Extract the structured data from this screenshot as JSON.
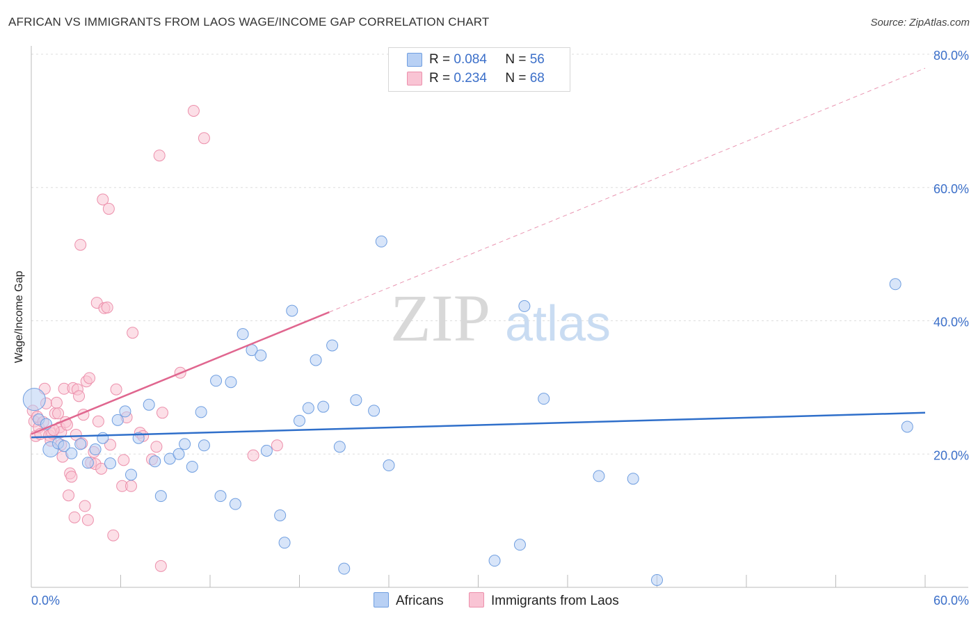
{
  "title": "AFRICAN VS IMMIGRANTS FROM LAOS WAGE/INCOME GAP CORRELATION CHART",
  "source": "Source: ZipAtlas.com",
  "watermark": {
    "zip": "ZIP",
    "atlas": "atlas"
  },
  "legend": {
    "africans": {
      "r_label": "R =",
      "r_value": "0.084",
      "n_label": "N =",
      "n_value": "56"
    },
    "laos": {
      "r_label": "R =",
      "r_value": "0.234",
      "n_label": "N =",
      "n_value": "68"
    }
  },
  "colors": {
    "africans_fill": "#b8d0f4",
    "africans_stroke": "#6f9ee0",
    "africans_line": "#2f6fca",
    "laos_fill": "#f9c4d4",
    "laos_stroke": "#ec8fab",
    "laos_line": "#e0668f",
    "grid": "#dddddd",
    "tick_label": "#3b6fc9"
  },
  "chart_data": {
    "type": "scatter",
    "title": "AFRICAN VS IMMIGRANTS FROM LAOS WAGE/INCOME GAP CORRELATION CHART",
    "xlabel": "",
    "ylabel": "Wage/Income Gap",
    "xlim": [
      0,
      60
    ],
    "ylim": [
      0,
      80
    ],
    "x_tick_labels": [
      "0.0%",
      "60.0%"
    ],
    "y_ticks": [
      20,
      40,
      60,
      80
    ],
    "y_tick_labels": [
      "20.0%",
      "40.0%",
      "60.0%",
      "80.0%"
    ],
    "grid": true,
    "series": [
      {
        "name": "Africans",
        "r": 0.084,
        "n": 56,
        "trend": {
          "x": [
            0,
            60
          ],
          "y": [
            22.5,
            26.2
          ],
          "style": "solid"
        },
        "points": [
          [
            0.2,
            28.2
          ],
          [
            0.5,
            25.2
          ],
          [
            1.0,
            24.5
          ],
          [
            1.3,
            20.7
          ],
          [
            1.8,
            21.6
          ],
          [
            2.2,
            21.2
          ],
          [
            2.7,
            20.1
          ],
          [
            3.3,
            21.5
          ],
          [
            3.8,
            18.7
          ],
          [
            4.3,
            20.7
          ],
          [
            4.8,
            22.4
          ],
          [
            5.3,
            18.6
          ],
          [
            5.8,
            25.1
          ],
          [
            6.3,
            26.4
          ],
          [
            6.7,
            16.9
          ],
          [
            7.2,
            22.4
          ],
          [
            7.9,
            27.4
          ],
          [
            8.3,
            18.9
          ],
          [
            8.7,
            13.7
          ],
          [
            9.3,
            19.3
          ],
          [
            9.9,
            20.0
          ],
          [
            10.3,
            21.5
          ],
          [
            10.8,
            18.1
          ],
          [
            11.4,
            26.3
          ],
          [
            11.6,
            21.3
          ],
          [
            12.4,
            31.0
          ],
          [
            12.7,
            13.7
          ],
          [
            13.4,
            30.8
          ],
          [
            13.7,
            12.5
          ],
          [
            14.2,
            38.0
          ],
          [
            14.8,
            35.6
          ],
          [
            15.4,
            34.8
          ],
          [
            15.8,
            20.5
          ],
          [
            16.7,
            10.8
          ],
          [
            17.0,
            6.7
          ],
          [
            17.5,
            41.5
          ],
          [
            18.0,
            25.0
          ],
          [
            18.6,
            26.9
          ],
          [
            19.1,
            34.1
          ],
          [
            19.6,
            27.1
          ],
          [
            20.2,
            36.3
          ],
          [
            20.7,
            21.1
          ],
          [
            21.0,
            2.8
          ],
          [
            21.8,
            28.1
          ],
          [
            23.0,
            26.5
          ],
          [
            23.5,
            51.9
          ],
          [
            24.0,
            18.3
          ],
          [
            31.1,
            4.0
          ],
          [
            32.8,
            6.4
          ],
          [
            33.1,
            42.2
          ],
          [
            34.4,
            28.3
          ],
          [
            38.1,
            16.7
          ],
          [
            40.4,
            16.3
          ],
          [
            42.0,
            1.1
          ],
          [
            58.0,
            45.5
          ],
          [
            58.8,
            24.1
          ]
        ]
      },
      {
        "name": "Immigrants from Laos",
        "r": 0.234,
        "n": 68,
        "trend": {
          "x": [
            0,
            20
          ],
          "y": [
            23.0,
            41.3
          ],
          "style": "solid",
          "extended": {
            "x": [
              20,
              60
            ],
            "y": [
              41.3,
              77.9
            ],
            "style": "dashed"
          }
        },
        "points": [
          [
            0.1,
            26.5
          ],
          [
            0.2,
            24.9
          ],
          [
            0.3,
            22.7
          ],
          [
            0.4,
            25.6
          ],
          [
            0.5,
            24.0
          ],
          [
            0.6,
            23.0
          ],
          [
            0.8,
            24.8
          ],
          [
            0.9,
            29.8
          ],
          [
            1.0,
            27.6
          ],
          [
            1.2,
            22.8
          ],
          [
            1.3,
            22.0
          ],
          [
            1.4,
            23.1
          ],
          [
            1.6,
            26.1
          ],
          [
            1.7,
            27.7
          ],
          [
            1.8,
            26.1
          ],
          [
            1.9,
            24.0
          ],
          [
            2.0,
            23.3
          ],
          [
            2.1,
            19.6
          ],
          [
            2.2,
            29.8
          ],
          [
            2.3,
            24.8
          ],
          [
            2.4,
            24.4
          ],
          [
            2.5,
            13.8
          ],
          [
            2.6,
            17.1
          ],
          [
            2.7,
            16.6
          ],
          [
            2.8,
            29.9
          ],
          [
            2.9,
            10.5
          ],
          [
            3.0,
            22.9
          ],
          [
            3.1,
            29.7
          ],
          [
            3.2,
            28.7
          ],
          [
            3.3,
            51.4
          ],
          [
            3.4,
            21.6
          ],
          [
            3.5,
            25.9
          ],
          [
            3.6,
            12.2
          ],
          [
            3.7,
            30.9
          ],
          [
            3.8,
            10.1
          ],
          [
            3.9,
            31.4
          ],
          [
            4.0,
            18.7
          ],
          [
            4.2,
            20.3
          ],
          [
            4.3,
            18.5
          ],
          [
            4.4,
            42.7
          ],
          [
            4.5,
            24.9
          ],
          [
            4.7,
            17.8
          ],
          [
            4.8,
            58.2
          ],
          [
            4.9,
            41.9
          ],
          [
            5.1,
            42.0
          ],
          [
            5.2,
            56.8
          ],
          [
            5.3,
            21.4
          ],
          [
            5.5,
            7.8
          ],
          [
            5.7,
            29.7
          ],
          [
            6.1,
            15.2
          ],
          [
            6.2,
            19.1
          ],
          [
            6.4,
            25.5
          ],
          [
            6.7,
            15.2
          ],
          [
            6.8,
            38.2
          ],
          [
            7.3,
            23.2
          ],
          [
            7.5,
            22.7
          ],
          [
            8.1,
            19.2
          ],
          [
            8.4,
            21.1
          ],
          [
            8.6,
            64.8
          ],
          [
            8.7,
            3.2
          ],
          [
            8.8,
            26.2
          ],
          [
            10.0,
            32.2
          ],
          [
            10.9,
            71.5
          ],
          [
            11.6,
            67.4
          ],
          [
            14.9,
            19.8
          ],
          [
            16.5,
            21.3
          ],
          [
            1.5,
            23.6
          ],
          [
            2.0,
            21.4
          ]
        ]
      }
    ]
  }
}
